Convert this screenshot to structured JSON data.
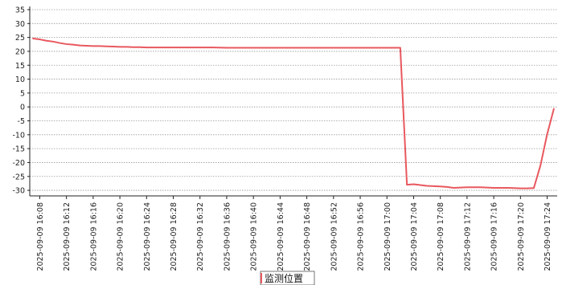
{
  "chart_data": {
    "type": "line",
    "title": "",
    "xlabel": "",
    "ylabel": "",
    "ylim": [
      -32,
      35
    ],
    "y_ticks": [
      35,
      30,
      25,
      20,
      15,
      10,
      5,
      0,
      -5,
      -10,
      -15,
      -20,
      -25,
      -30
    ],
    "x_ticks": [
      "2025-09-09 16:08",
      "2025-09-09 16:12",
      "2025-09-09 16:16",
      "2025-09-09 16:20",
      "2025-09-09 16:24",
      "2025-09-09 16:28",
      "2025-09-09 16:32",
      "2025-09-09 16:36",
      "2025-09-09 16:40",
      "2025-09-09 16:44",
      "2025-09-09 16:48",
      "2025-09-09 16:52",
      "2025-09-09 16:56",
      "2025-09-09 17:00",
      "2025-09-09 17:04",
      "2025-09-09 17:08",
      "2025-09-09 17:12",
      "2025-09-09 17:16",
      "2025-09-09 17:20",
      "2025-09-09 17:24"
    ],
    "x_range": [
      "2025-09-09 16:06:30",
      "2025-09-09 17:25:30"
    ],
    "grid": true,
    "legend_position": "bottom-center",
    "series": [
      {
        "name": "监测位置",
        "color": "#e8585e",
        "points": [
          [
            "2025-09-09 16:07",
            24.6
          ],
          [
            "2025-09-09 16:08",
            24.3
          ],
          [
            "2025-09-09 16:09",
            23.8
          ],
          [
            "2025-09-09 16:10",
            23.5
          ],
          [
            "2025-09-09 16:11",
            23.0
          ],
          [
            "2025-09-09 16:12",
            22.6
          ],
          [
            "2025-09-09 16:13",
            22.4
          ],
          [
            "2025-09-09 16:14",
            22.1
          ],
          [
            "2025-09-09 16:15",
            22.0
          ],
          [
            "2025-09-09 16:16",
            21.9
          ],
          [
            "2025-09-09 16:17",
            21.9
          ],
          [
            "2025-09-09 16:18",
            21.8
          ],
          [
            "2025-09-09 16:19",
            21.7
          ],
          [
            "2025-09-09 16:20",
            21.6
          ],
          [
            "2025-09-09 16:21",
            21.6
          ],
          [
            "2025-09-09 16:22",
            21.5
          ],
          [
            "2025-09-09 16:23",
            21.5
          ],
          [
            "2025-09-09 16:24",
            21.4
          ],
          [
            "2025-09-09 16:26",
            21.4
          ],
          [
            "2025-09-09 16:28",
            21.4
          ],
          [
            "2025-09-09 16:30",
            21.4
          ],
          [
            "2025-09-09 16:32",
            21.4
          ],
          [
            "2025-09-09 16:34",
            21.4
          ],
          [
            "2025-09-09 16:36",
            21.3
          ],
          [
            "2025-09-09 16:40",
            21.3
          ],
          [
            "2025-09-09 16:44",
            21.3
          ],
          [
            "2025-09-09 16:48",
            21.3
          ],
          [
            "2025-09-09 16:52",
            21.3
          ],
          [
            "2025-09-09 16:56",
            21.3
          ],
          [
            "2025-09-09 17:00",
            21.3
          ],
          [
            "2025-09-09 17:02",
            21.3
          ],
          [
            "2025-09-09 17:03",
            -28.0
          ],
          [
            "2025-09-09 17:04",
            -27.8
          ],
          [
            "2025-09-09 17:05",
            -28.1
          ],
          [
            "2025-09-09 17:06",
            -28.4
          ],
          [
            "2025-09-09 17:07",
            -28.5
          ],
          [
            "2025-09-09 17:08",
            -28.6
          ],
          [
            "2025-09-09 17:09",
            -28.8
          ],
          [
            "2025-09-09 17:10",
            -29.1
          ],
          [
            "2025-09-09 17:11",
            -29.0
          ],
          [
            "2025-09-09 17:12",
            -28.9
          ],
          [
            "2025-09-09 17:13",
            -28.9
          ],
          [
            "2025-09-09 17:14",
            -28.9
          ],
          [
            "2025-09-09 17:15",
            -29.0
          ],
          [
            "2025-09-09 17:16",
            -29.1
          ],
          [
            "2025-09-09 17:17",
            -29.1
          ],
          [
            "2025-09-09 17:18",
            -29.1
          ],
          [
            "2025-09-09 17:19",
            -29.2
          ],
          [
            "2025-09-09 17:20",
            -29.3
          ],
          [
            "2025-09-09 17:21",
            -29.3
          ],
          [
            "2025-09-09 17:22",
            -29.2
          ],
          [
            "2025-09-09 17:23",
            -21.0
          ],
          [
            "2025-09-09 17:24",
            -9.8
          ],
          [
            "2025-09-09 17:25",
            -0.7
          ]
        ]
      }
    ]
  }
}
